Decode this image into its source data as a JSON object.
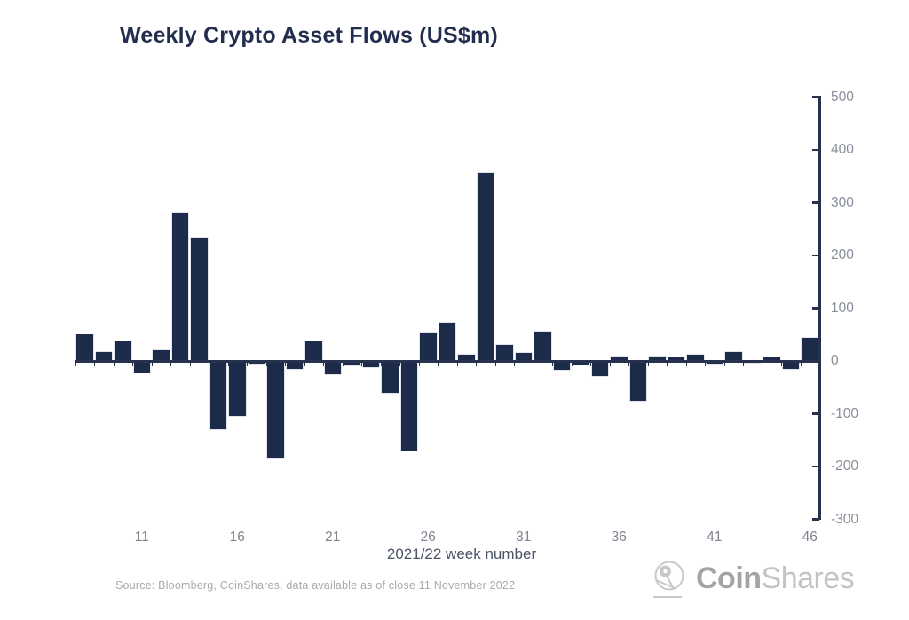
{
  "title": "Weekly Crypto Asset Flows (US$m)",
  "chart_data": {
    "type": "bar",
    "title": "Weekly Crypto Asset Flows (US$m)",
    "xlabel": "2021/22 week number",
    "ylabel": "",
    "x": [
      8,
      9,
      10,
      11,
      12,
      13,
      14,
      15,
      16,
      17,
      18,
      19,
      20,
      21,
      22,
      23,
      24,
      25,
      26,
      27,
      28,
      29,
      30,
      31,
      32,
      33,
      34,
      35,
      36,
      37,
      38,
      39,
      40,
      41,
      42,
      43,
      44,
      45,
      46
    ],
    "values": [
      50,
      16,
      37,
      -22,
      21,
      280,
      234,
      -130,
      -105,
      -5,
      -183,
      -15,
      37,
      -26,
      -8,
      -12,
      -60,
      -170,
      54,
      72,
      11,
      356,
      30,
      15,
      55,
      -16,
      -6,
      -29,
      9,
      -75,
      9,
      6,
      12,
      -5,
      16,
      -3,
      6,
      -15,
      44
    ],
    "x_tick_labels": [
      "11",
      "16",
      "21",
      "26",
      "31",
      "36",
      "41",
      "46"
    ],
    "y_ticks": [
      500,
      400,
      300,
      200,
      100,
      0,
      -100,
      -200,
      -300
    ],
    "ylim": [
      -300,
      500
    ],
    "grid": false,
    "legend": "none",
    "bar_color": "#1d2b4b",
    "axis_color": "#27324e",
    "tick_label_color": "#878d99"
  },
  "source_note": "Source: Bloomberg, CoinShares, data available as of close 11 November 2022",
  "logo": {
    "coin": "Coin",
    "shares": "Shares"
  }
}
